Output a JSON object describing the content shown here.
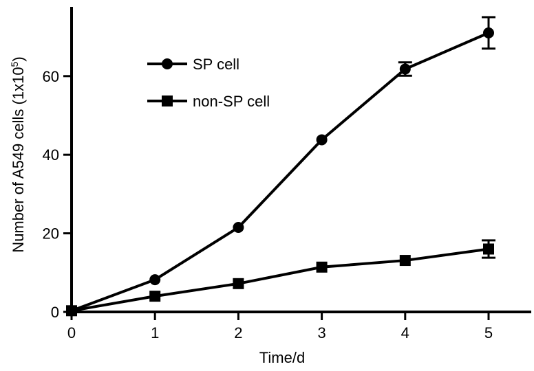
{
  "chart_data": {
    "type": "line",
    "xlabel": "Time/d",
    "ylabel_main": "Number of A549 cells (1x10",
    "ylabel_sup": "5",
    "ylabel_close": ")",
    "x": [
      0,
      1,
      2,
      3,
      4,
      5
    ],
    "x_ticks": [
      "0",
      "1",
      "2",
      "3",
      "4",
      "5"
    ],
    "y_ticks": [
      "0",
      "20",
      "40",
      "60"
    ],
    "y_tick_values": [
      0,
      20,
      40,
      60
    ],
    "xlim": [
      0,
      5.5
    ],
    "ylim": [
      0,
      77
    ],
    "grid": false,
    "legend_position": "top-left",
    "series": [
      {
        "name": "SP cell",
        "marker": "circle",
        "values": [
          0.3,
          8.2,
          21.5,
          43.8,
          61.8,
          71.0
        ],
        "errors": [
          0,
          0,
          0,
          0,
          1.7,
          4.0
        ]
      },
      {
        "name": "non-SP cell",
        "marker": "square",
        "values": [
          0.3,
          4.0,
          7.2,
          11.4,
          13.1,
          16.0
        ],
        "errors": [
          0,
          0,
          0,
          0,
          0,
          2.2
        ]
      }
    ],
    "colors": {
      "line": "#000000",
      "background": "#ffffff"
    }
  }
}
